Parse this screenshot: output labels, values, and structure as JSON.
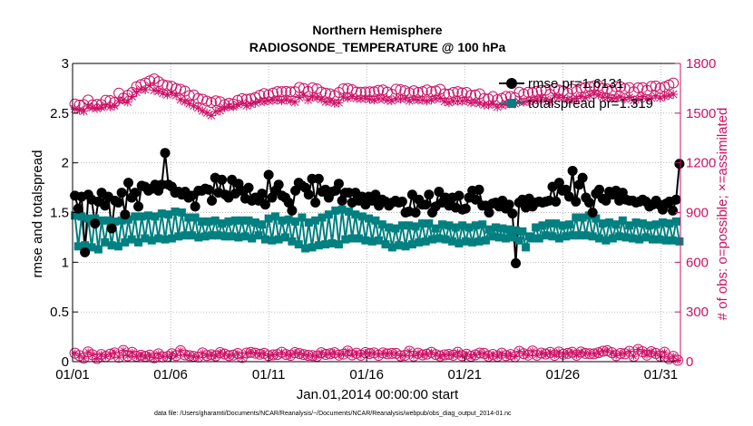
{
  "chart_data": {
    "type": "line",
    "title": "Northern Hemisphere",
    "subtitle": "RADIOSONDE_TEMPERATURE @ 100 hPa",
    "xlabel": "Jan.01,2014 00:00:00 start",
    "ylabel_left": "rmse and totalspread",
    "ylabel_right": "# of obs: o=possible; ×=assimilated",
    "footnote": "data file: /Users/gharamti/Documents/NCAR/Reanalysis/~/Documents/NCAR/Reanalysis/webpub/obs_diag_output_2014-01.nc",
    "x_ticks": [
      "01/01",
      "01/06",
      "01/11",
      "01/16",
      "01/21",
      "01/26",
      "01/31"
    ],
    "x_tick_days": [
      1,
      6,
      11,
      16,
      21,
      26,
      31
    ],
    "xlim": [
      1,
      32
    ],
    "ylim_left": [
      0,
      3
    ],
    "y_ticks_left": [
      "0",
      "0.5",
      "1",
      "1.5",
      "2",
      "2.5",
      "3"
    ],
    "ylim_right": [
      0,
      1800
    ],
    "y_ticks_right": [
      "0",
      "300",
      "600",
      "900",
      "1200",
      "1500",
      "1800"
    ],
    "legend": [
      "rmse pr=1.6131",
      "totalspread pr=1.319"
    ],
    "colors": {
      "rmse": "#000000",
      "spread": "#008080",
      "obs": "#cc1166"
    },
    "series": [
      {
        "name": "rmse",
        "axis": "left",
        "values": [
          1.67,
          1.54,
          1.66,
          1.1,
          1.68,
          1.63,
          1.39,
          1.61,
          1.7,
          1.57,
          1.66,
          1.34,
          1.62,
          1.6,
          1.7,
          1.48,
          1.8,
          1.65,
          1.7,
          1.56,
          1.77,
          1.76,
          1.72,
          1.74,
          1.78,
          1.72,
          1.78,
          2.1,
          1.78,
          1.76,
          1.7,
          1.71,
          1.68,
          1.71,
          1.65,
          1.67,
          1.56,
          1.72,
          1.72,
          1.74,
          1.73,
          1.62,
          1.85,
          1.7,
          1.83,
          1.68,
          1.65,
          1.83,
          1.69,
          1.79,
          1.72,
          1.64,
          1.75,
          1.62,
          1.65,
          1.62,
          1.69,
          1.58,
          1.88,
          1.65,
          1.72,
          1.78,
          1.67,
          1.65,
          1.6,
          1.52,
          1.72,
          1.8,
          1.77,
          1.75,
          1.68,
          1.84,
          1.6,
          1.84,
          1.71,
          1.73,
          1.65,
          1.71,
          1.72,
          1.79,
          1.62,
          1.7,
          1.7,
          1.6,
          1.7,
          1.62,
          1.66,
          1.58,
          1.66,
          1.62,
          1.68,
          1.57,
          1.63,
          1.61,
          1.57,
          1.6,
          1.62,
          1.6,
          1.61,
          1.5,
          1.51,
          1.68,
          1.5,
          1.63,
          1.58,
          1.58,
          1.68,
          1.5,
          1.56,
          1.71,
          1.6,
          1.65,
          1.57,
          1.65,
          1.55,
          1.67,
          1.53,
          1.54,
          1.65,
          1.72,
          1.63,
          1.73,
          1.57,
          1.57,
          1.5,
          1.59,
          1.6,
          1.56,
          1.62,
          1.54,
          1.58,
          1.49,
          0.99,
          1.6,
          1.63,
          1.55,
          1.64,
          1.56,
          1.6,
          1.61,
          1.6,
          1.61,
          1.62,
          1.76,
          1.61,
          1.8,
          1.72,
          1.73,
          1.66,
          1.92,
          1.61,
          1.78,
          1.85,
          1.65,
          1.6,
          1.5,
          1.69,
          1.73,
          1.64,
          1.62,
          1.71,
          1.68,
          1.72,
          1.62,
          1.7,
          1.63,
          1.62,
          1.62,
          1.6,
          1.61,
          1.63,
          1.61,
          1.56,
          1.58,
          1.62,
          1.58,
          1.53,
          1.59,
          1.61,
          1.52,
          1.63,
          1.99
        ]
      },
      {
        "name": "totalspread",
        "axis": "left",
        "values": [
          1.47,
          1.16,
          1.46,
          1.17,
          1.44,
          1.15,
          1.44,
          1.13,
          1.42,
          1.2,
          1.42,
          1.17,
          1.41,
          1.16,
          1.42,
          1.2,
          1.43,
          1.23,
          1.46,
          1.2,
          1.46,
          1.24,
          1.47,
          1.22,
          1.46,
          1.24,
          1.49,
          1.23,
          1.48,
          1.24,
          1.51,
          1.26,
          1.5,
          1.27,
          1.45,
          1.27,
          1.45,
          1.25,
          1.41,
          1.26,
          1.41,
          1.27,
          1.42,
          1.27,
          1.39,
          1.26,
          1.41,
          1.26,
          1.42,
          1.25,
          1.42,
          1.26,
          1.42,
          1.24,
          1.4,
          1.27,
          1.38,
          1.23,
          1.44,
          1.22,
          1.46,
          1.23,
          1.42,
          1.25,
          1.43,
          1.21,
          1.41,
          1.18,
          1.45,
          1.14,
          1.4,
          1.15,
          1.42,
          1.17,
          1.45,
          1.18,
          1.48,
          1.19,
          1.52,
          1.18,
          1.53,
          1.23,
          1.51,
          1.24,
          1.48,
          1.24,
          1.46,
          1.22,
          1.44,
          1.21,
          1.42,
          1.22,
          1.38,
          1.18,
          1.35,
          1.15,
          1.34,
          1.17,
          1.37,
          1.16,
          1.37,
          1.18,
          1.36,
          1.2,
          1.39,
          1.21,
          1.39,
          1.23,
          1.34,
          1.24,
          1.38,
          1.23,
          1.37,
          1.21,
          1.35,
          1.19,
          1.37,
          1.21,
          1.35,
          1.2,
          1.37,
          1.21,
          1.38,
          1.22,
          1.33,
          1.26,
          1.35,
          1.25,
          1.34,
          1.24,
          1.33,
          1.25,
          1.32,
          1.22,
          1.31,
          1.15,
          1.26,
          1.24,
          1.35,
          1.24,
          1.37,
          1.27,
          1.39,
          1.26,
          1.39,
          1.24,
          1.37,
          1.26,
          1.38,
          1.27,
          1.45,
          1.27,
          1.45,
          1.27,
          1.47,
          1.26,
          1.44,
          1.24,
          1.39,
          1.22,
          1.4,
          1.24,
          1.38,
          1.26,
          1.42,
          1.25,
          1.37,
          1.24,
          1.4,
          1.23,
          1.39,
          1.25,
          1.37,
          1.23,
          1.38,
          1.23,
          1.4,
          1.22,
          1.39,
          1.22,
          1.41,
          1.21
        ]
      },
      {
        "name": "obs possible",
        "axis": "right",
        "values": [
          1555,
          1549,
          1552,
          1579,
          1550,
          1553,
          1552,
          1578,
          1576,
          1565,
          1621,
          1591,
          1608,
          1625,
          1660,
          1672,
          1682,
          1695,
          1707,
          1690,
          1672,
          1666,
          1662,
          1648,
          1644,
          1633,
          1606,
          1610,
          1589,
          1584,
          1573,
          1564,
          1574,
          1569,
          1551,
          1560,
          1555,
          1577,
          1587,
          1584,
          1587,
          1594,
          1608,
          1618,
          1610,
          1621,
          1630,
          1630,
          1631,
          1629,
          1630,
          1655,
          1649,
          1631,
          1653,
          1647,
          1627,
          1621,
          1617,
          1606,
          1625,
          1647,
          1649,
          1641,
          1628,
          1626,
          1628,
          1629,
          1629,
          1638,
          1640,
          1627,
          1615,
          1645,
          1641,
          1635,
          1623,
          1635,
          1625,
          1630,
          1640,
          1630,
          1634,
          1644,
          1617,
          1615,
          1625,
          1630,
          1622,
          1625,
          1607,
          1610,
          1617,
          1589,
          1585,
          1600,
          1581,
          1589,
          1601,
          1600,
          1593,
          1627,
          1615,
          1626,
          1624,
          1631,
          1637,
          1638,
          1614,
          1648,
          1639,
          1634,
          1621,
          1645,
          1631,
          1652,
          1654,
          1660,
          1664,
          1664,
          1649,
          1646,
          1637,
          1659,
          1659,
          1648,
          1654,
          1629,
          1653,
          1654,
          1638,
          1662,
          1664,
          1651,
          1659,
          1670,
          1682
        ],
        "x_start": 1.12,
        "x_step": 0.2244
      },
      {
        "name": "obs assimilated",
        "axis": "right",
        "values": [
          1525,
          1519,
          1512,
          1543,
          1534,
          1529,
          1536,
          1548,
          1538,
          1545,
          1576,
          1579,
          1567,
          1600,
          1626,
          1645,
          1641,
          1667,
          1638,
          1633,
          1620,
          1611,
          1622,
          1607,
          1581,
          1570,
          1558,
          1544,
          1532,
          1514,
          1501,
          1486,
          1510,
          1515,
          1534,
          1541,
          1539,
          1552,
          1560,
          1545,
          1554,
          1561,
          1572,
          1570,
          1575,
          1578,
          1580,
          1575,
          1581,
          1574,
          1567,
          1595,
          1609,
          1580,
          1599,
          1593,
          1584,
          1568,
          1571,
          1560,
          1563,
          1597,
          1591,
          1599,
          1589,
          1588,
          1589,
          1583,
          1580,
          1587,
          1586,
          1578,
          1575,
          1586,
          1585,
          1588,
          1574,
          1584,
          1579,
          1579,
          1574,
          1580,
          1587,
          1590,
          1570,
          1564,
          1573,
          1573,
          1573,
          1576,
          1563,
          1566,
          1560,
          1550,
          1550,
          1556,
          1537,
          1548,
          1552,
          1563,
          1557,
          1568,
          1567,
          1572,
          1577,
          1582,
          1593,
          1582,
          1570,
          1604,
          1596,
          1595,
          1582,
          1583,
          1589,
          1600,
          1593,
          1608,
          1619,
          1610,
          1597,
          1595,
          1588,
          1592,
          1598,
          1586,
          1595,
          1577,
          1585,
          1600,
          1587,
          1591,
          1604,
          1592,
          1602,
          1607,
          1614
        ],
        "x_start": 1.12,
        "x_step": 0.2244
      },
      {
        "name": "obs possible lower",
        "axis": "right",
        "values": [
          51,
          37,
          21,
          59,
          42,
          19,
          43,
          31,
          45,
          53,
          27,
          68,
          35,
          56,
          33,
          39,
          32,
          40,
          23,
          47,
          29,
          31,
          48,
          37,
          66,
          41,
          36,
          32,
          28,
          53,
          37,
          42,
          35,
          55,
          46,
          36,
          40,
          49,
          25,
          52,
          56,
          51,
          45,
          50,
          36,
          41,
          43,
          57,
          43,
          38,
          55,
          49,
          43,
          38,
          37,
          33,
          54,
          44,
          48,
          54,
          40,
          45,
          64,
          41,
          51,
          39,
          55,
          49,
          53,
          38,
          53,
          47,
          50,
          50,
          35,
          38,
          63,
          34,
          51,
          41,
          45,
          56,
          43,
          34,
          41,
          44,
          39,
          57,
          36,
          45,
          33,
          41,
          52,
          50,
          33,
          44,
          32,
          51,
          36,
          43,
          30,
          62,
          48,
          40,
          64,
          39,
          52,
          46,
          56,
          38,
          58,
          45,
          50,
          57,
          39,
          58,
          50,
          48,
          47,
          54,
          63,
          66,
          55,
          36,
          50,
          47,
          62,
          32,
          74,
          60,
          40,
          60,
          50,
          34,
          57,
          18,
          32,
          8
        ],
        "x_start": 1.12,
        "x_step": 0.2244
      }
    ]
  }
}
